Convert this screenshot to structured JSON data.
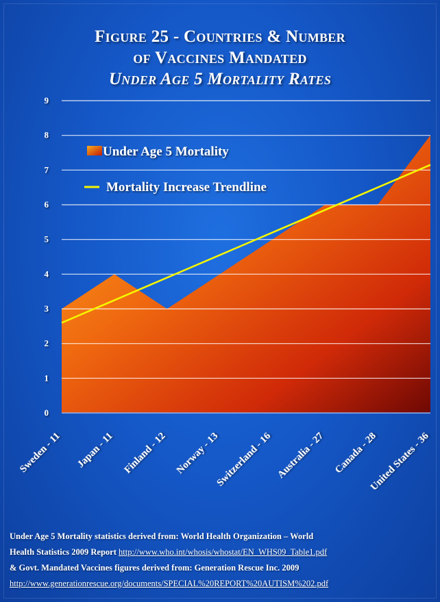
{
  "title": {
    "line1": "Figure 25 - Countries & Number",
    "line2": "of Vaccines Mandated",
    "line3": "Under Age 5 Mortality Rates"
  },
  "colors": {
    "background": "#1558c8",
    "area_top": "#f7a21b",
    "area_bottom": "#7a0a05",
    "trendline": "#f5f500",
    "grid": "#ffffff",
    "text": "#ffffff"
  },
  "chart_data": {
    "type": "area",
    "title": "Figure 25 - Countries & Number of Vaccines Mandated",
    "subtitle": "Under Age 5 Mortality Rates",
    "xlabel": "",
    "ylabel": "",
    "categories": [
      "Sweden - 11",
      "Japan - 11",
      "Finland - 12",
      "Norway - 13",
      "Switzerland - 16",
      "Australia - 27",
      "Canada - 28",
      "United States - 36"
    ],
    "series": [
      {
        "name": "Under Age 5 Mortality",
        "kind": "area",
        "values": [
          3,
          4,
          3,
          4,
          5,
          6,
          6,
          8
        ]
      },
      {
        "name": "Mortality Increase Trendline",
        "kind": "line",
        "values": [
          2.6,
          3.25,
          3.9,
          4.55,
          5.2,
          5.85,
          6.5,
          7.15
        ]
      }
    ],
    "ylim": [
      0,
      9
    ],
    "yticks": [
      "0",
      "1",
      "2",
      "3",
      "4",
      "5",
      "6",
      "7",
      "8",
      "9"
    ],
    "grid": true,
    "legend_position": "top-left"
  },
  "source": {
    "line1": "Under Age 5 Mortality statistics derived from: World Health Organization – World",
    "line2_text": "Health Statistics 2009 Report",
    "line2_link": "http://www.who.int/whosis/whostat/EN_WHS09_Table1.pdf",
    "line3": "& Govt. Mandated Vaccines figures derived from: Generation Rescue Inc. 2009",
    "line4_link": "http://www.generationrescue.org/documents/SPECIAL%20REPORT%20AUTISM%202.pdf"
  }
}
